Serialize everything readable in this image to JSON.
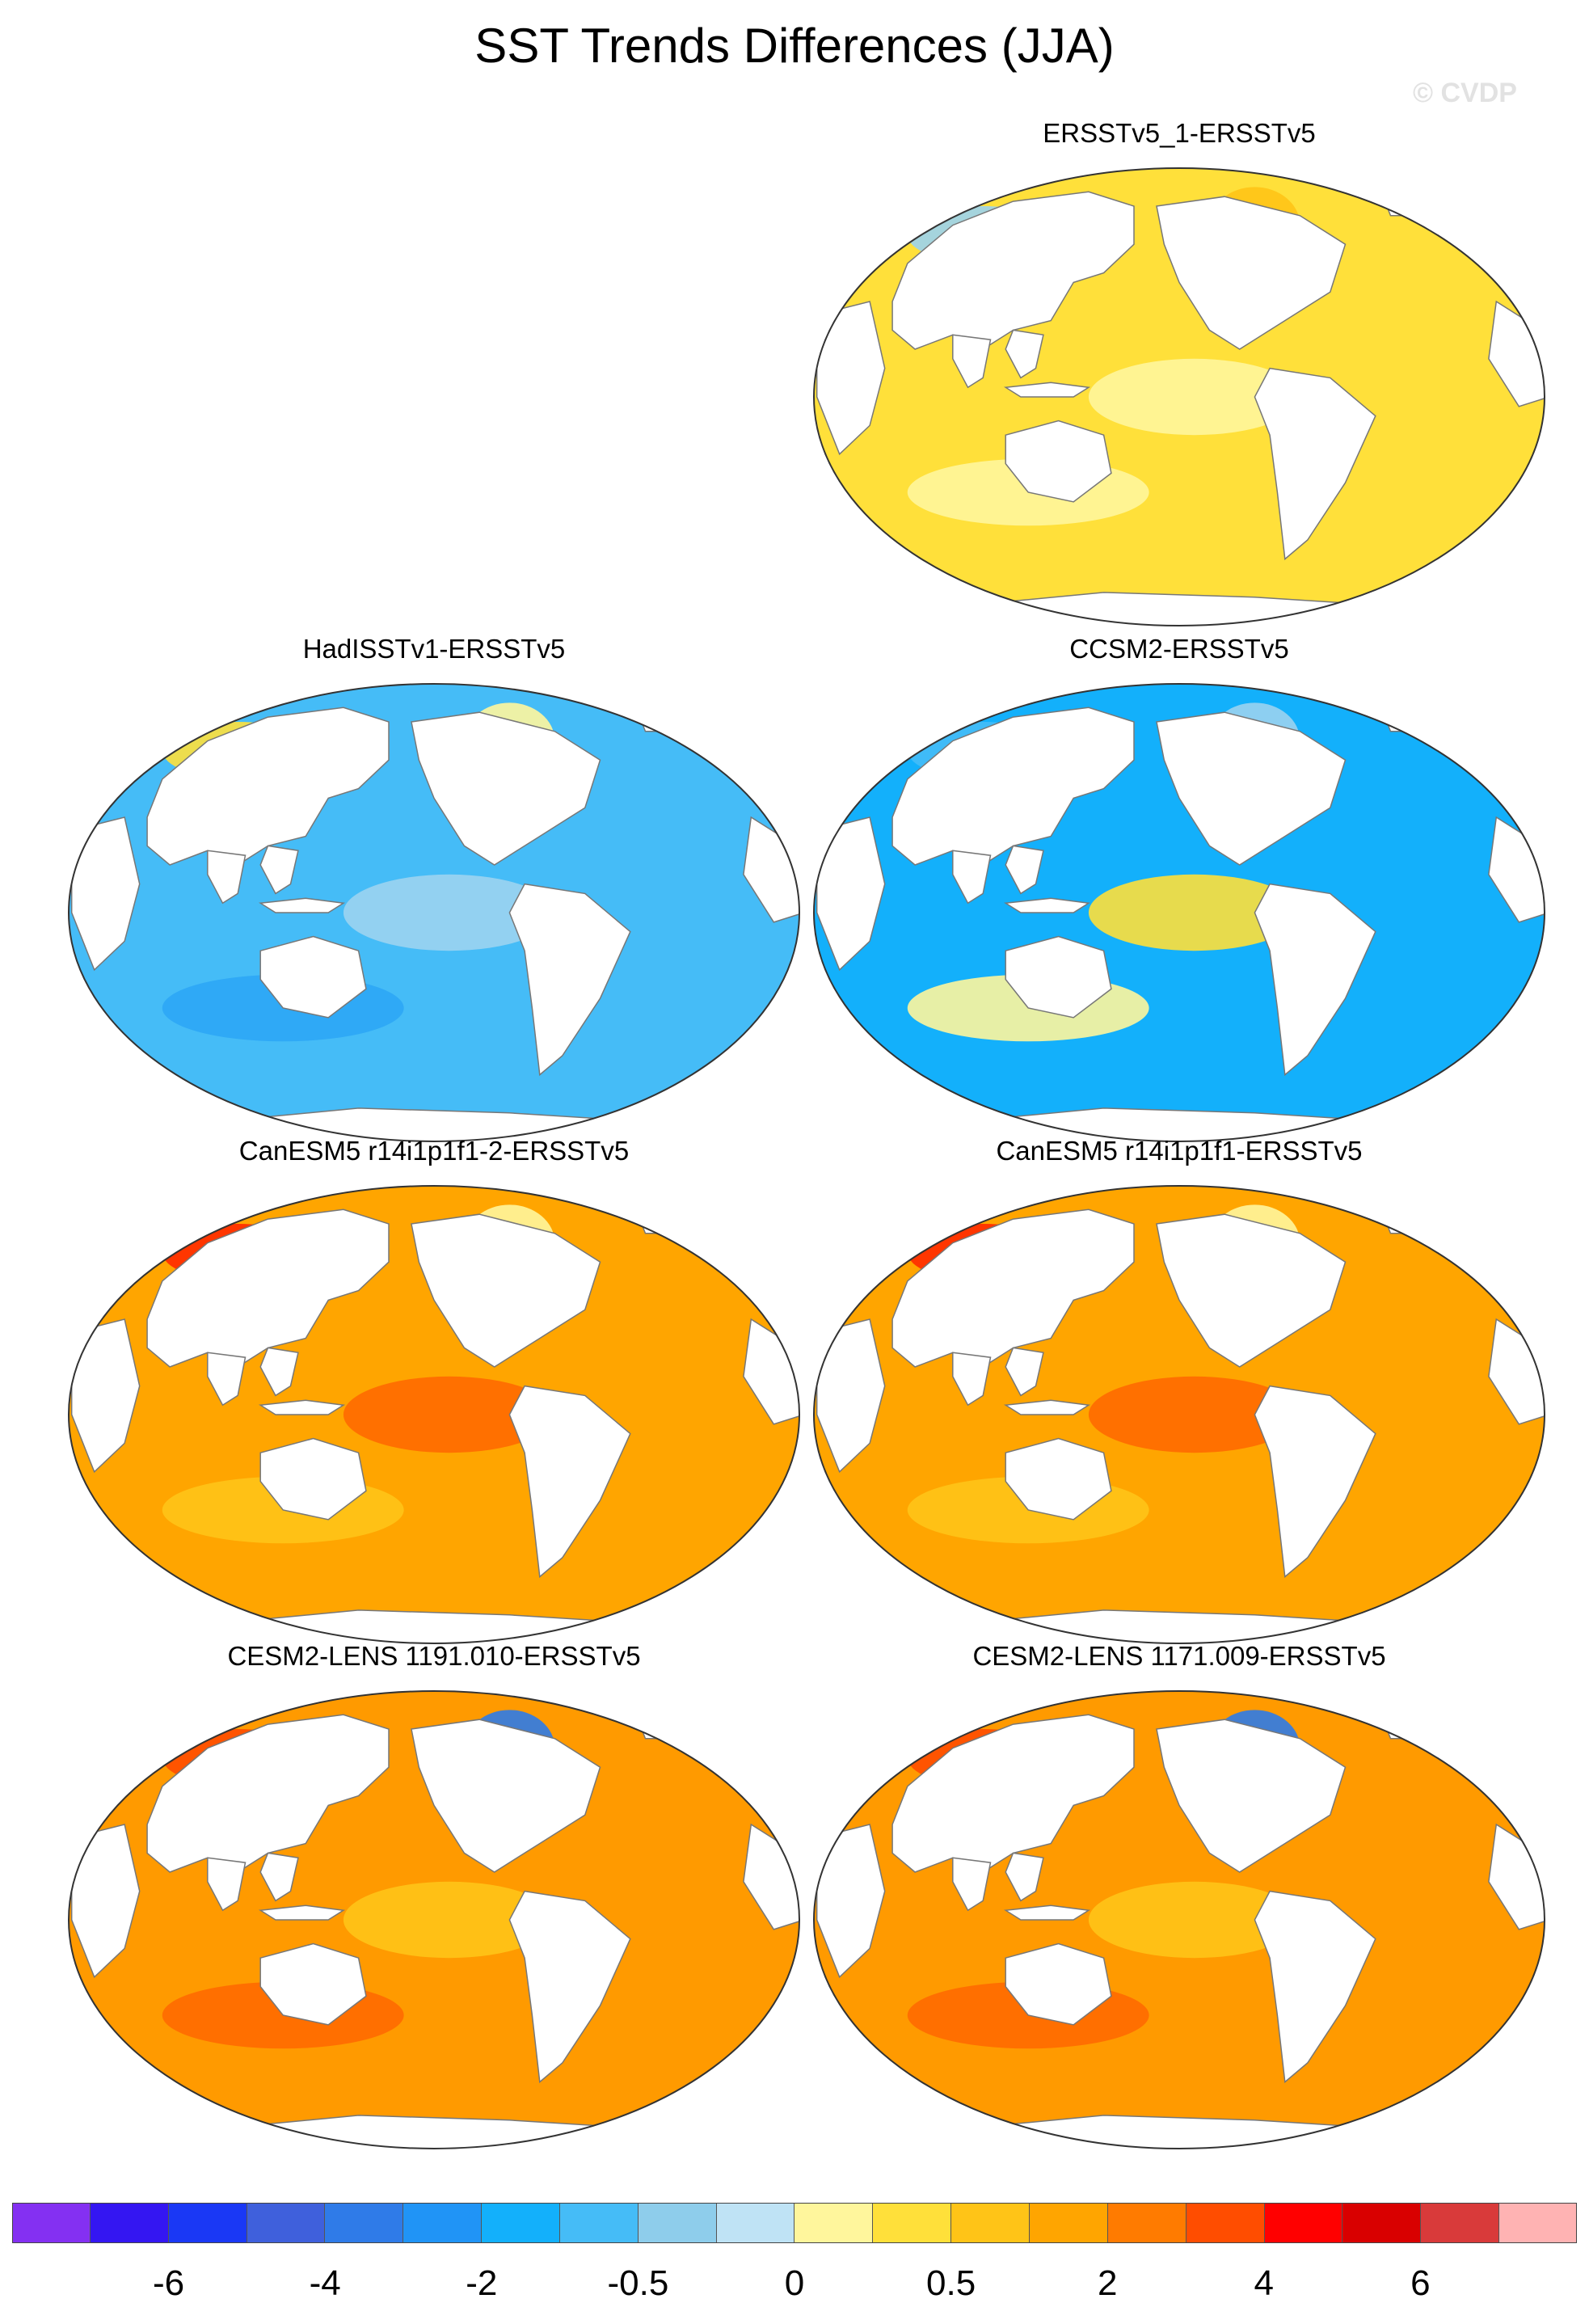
{
  "title": "SST Trends Differences (JJA)",
  "watermark": "© CVDP",
  "panels": [
    {
      "title": "ERSSTv5_1-ERSSTv5",
      "ocean_color": "#ffe03a",
      "patch_colors": [
        "#9bd3f0",
        "#fff69c",
        "#ffc417",
        "#fff69c"
      ]
    },
    {
      "title": "HadISSTv1-ERSSTv5",
      "ocean_color": "#45bcf7",
      "patch_colors": [
        "#ffe03a",
        "#9bd3f0",
        "#fff69c",
        "#2ca6f5"
      ]
    },
    {
      "title": "CCSM2-ERSSTv5",
      "ocean_color": "#13b0fb",
      "patch_colors": [
        "#45bcf7",
        "#ffe03a",
        "#9bd3f0",
        "#fff69c"
      ]
    },
    {
      "title": "CanESM5 r14i1p1f1-2-ERSSTv5",
      "ocean_color": "#ffa500",
      "patch_colors": [
        "#ff2a00",
        "#ff6a00",
        "#fff69c",
        "#ffc417"
      ]
    },
    {
      "title": "CanESM5 r14i1p1f1-ERSSTv5",
      "ocean_color": "#ffa500",
      "patch_colors": [
        "#ff2a00",
        "#ff6a00",
        "#fff69c",
        "#ffc417"
      ]
    },
    {
      "title": "CESM2-LENS 1191.010-ERSSTv5",
      "ocean_color": "#ff9a00",
      "patch_colors": [
        "#ff4d00",
        "#ffc417",
        "#2e7be8",
        "#ff6a00"
      ]
    },
    {
      "title": "CESM2-LENS 1171.009-ERSSTv5",
      "ocean_color": "#ff9a00",
      "patch_colors": [
        "#ff4d00",
        "#ffc417",
        "#2e7be8",
        "#ff6a00"
      ]
    }
  ],
  "colorbar": {
    "colors": [
      "#8430f2",
      "#3416f2",
      "#1a38f5",
      "#3f60dc",
      "#2f7be8",
      "#2094f6",
      "#13b0fb",
      "#45bcf7",
      "#8ecdeb",
      "#bfe3f5",
      "#fff69c",
      "#ffe03a",
      "#ffc417",
      "#ffa500",
      "#ff7b00",
      "#ff4d00",
      "#ff0000",
      "#d90000",
      "#d93a3a",
      "#ffb3b3"
    ],
    "tick_labels": [
      "-6",
      "-4",
      "-2",
      "-0.5",
      "0",
      "0.5",
      "2",
      "4",
      "6"
    ]
  }
}
